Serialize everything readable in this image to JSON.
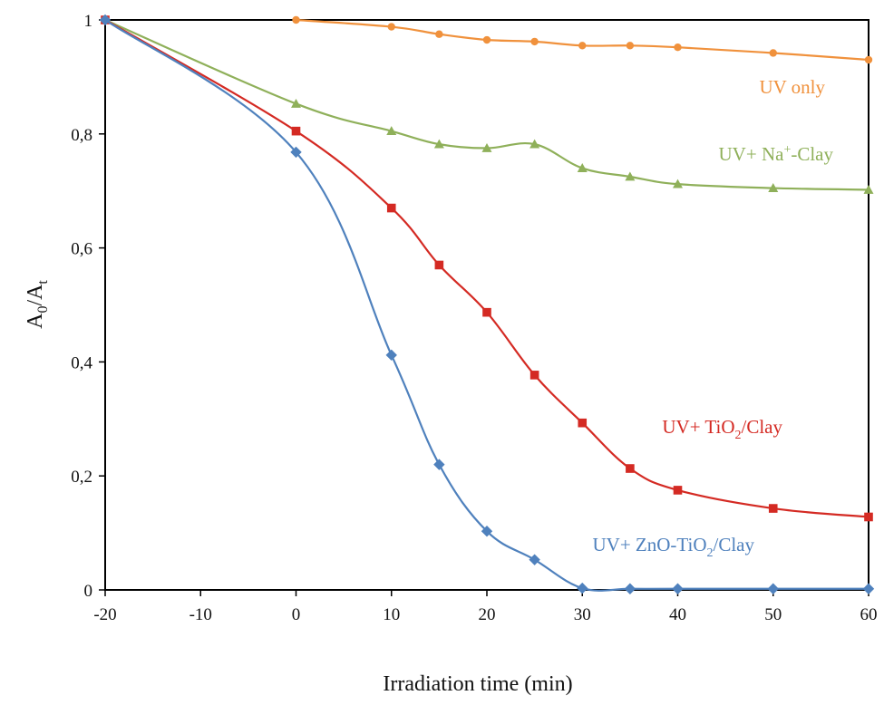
{
  "chart_data": {
    "type": "line",
    "title": "",
    "xlabel": "Irradiation time (min)",
    "ylabel": {
      "main": "A",
      "sub1": "0",
      "sep": "/A",
      "sub2": "t"
    },
    "xlim": [
      -20,
      60
    ],
    "ylim": [
      0,
      1
    ],
    "x_ticks": [
      -20,
      -10,
      0,
      10,
      20,
      30,
      40,
      50,
      60
    ],
    "x_tick_labels": [
      "-20",
      "-10",
      "0",
      "10",
      "20",
      "30",
      "40",
      "50",
      "60"
    ],
    "y_ticks": [
      0,
      0.2,
      0.4,
      0.6,
      0.8,
      1
    ],
    "y_tick_labels": [
      "0",
      "0,2",
      "0,4",
      "0,6",
      "0,8",
      "1"
    ],
    "grid": false,
    "legend": "none (series labeled directly on plot)",
    "series": [
      {
        "name": "UV only",
        "label_parts": {
          "pre": "UV only"
        },
        "color": "#f0913c",
        "marker": "circle",
        "x": [
          0,
          10,
          15,
          20,
          25,
          30,
          35,
          40,
          50,
          60
        ],
        "y": [
          1.0,
          0.988,
          0.975,
          0.965,
          0.962,
          0.955,
          0.955,
          0.952,
          0.942,
          0.93
        ]
      },
      {
        "name": "UV+ Na+-Clay",
        "label_parts": {
          "pre": "UV+ Na",
          "sup": "+",
          "post": "-Clay"
        },
        "color": "#8fb05a",
        "marker": "triangle",
        "x": [
          -20,
          0,
          10,
          15,
          20,
          25,
          30,
          35,
          40,
          50,
          60
        ],
        "y": [
          1.0,
          0.853,
          0.805,
          0.782,
          0.775,
          0.782,
          0.74,
          0.725,
          0.712,
          0.705,
          0.702
        ]
      },
      {
        "name": "UV+ TiO2/Clay",
        "label_parts": {
          "pre": "UV+ TiO",
          "sub": "2",
          "post": "/Clay"
        },
        "color": "#d42a23",
        "marker": "square",
        "x": [
          -20,
          0,
          10,
          15,
          20,
          25,
          30,
          35,
          40,
          50,
          60
        ],
        "y": [
          1.0,
          0.805,
          0.67,
          0.57,
          0.487,
          0.377,
          0.293,
          0.213,
          0.175,
          0.143,
          0.128
        ]
      },
      {
        "name": "UV+ ZnO-TiO2/Clay",
        "label_parts": {
          "pre": "UV+ ZnO-TiO",
          "sub": "2",
          "post": "/Clay"
        },
        "color": "#4f81bd",
        "marker": "diamond",
        "x": [
          -20,
          0,
          10,
          15,
          20,
          25,
          30,
          35,
          40,
          50,
          60
        ],
        "y": [
          1.0,
          0.768,
          0.412,
          0.22,
          0.103,
          0.053,
          0.003,
          0.002,
          0.002,
          0.002,
          0.002
        ]
      }
    ]
  }
}
